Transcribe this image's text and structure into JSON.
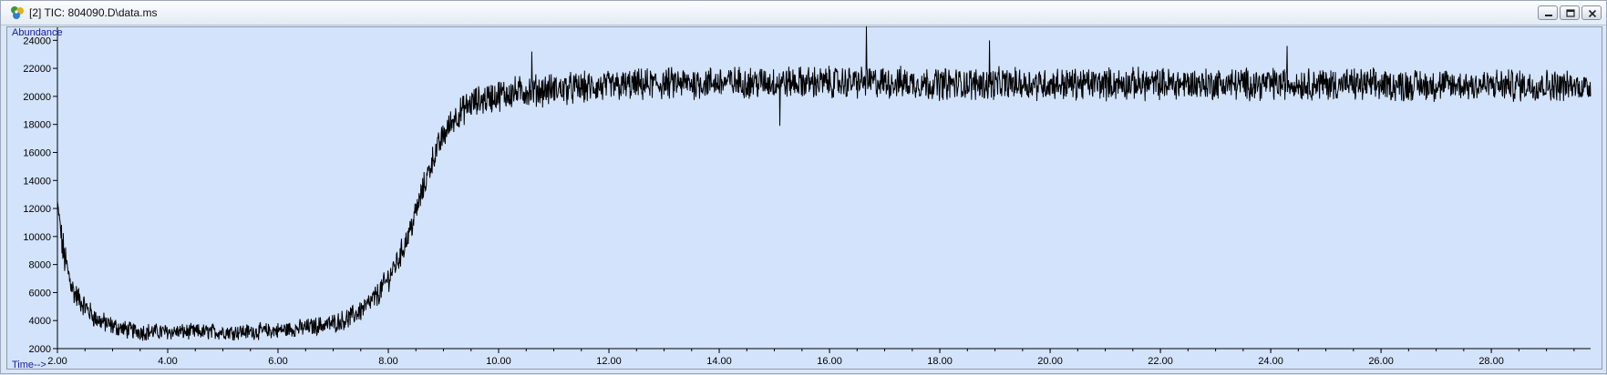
{
  "window": {
    "title": "[2] TIC: 804090.D\\data.ms",
    "app_icon": "chemstation-icon",
    "controls": [
      "minimize-icon",
      "restore-icon",
      "close-icon"
    ]
  },
  "colors": {
    "plot_background": "#d3e3fb",
    "trace": "#000000",
    "axis_label": "#1a1aa0"
  },
  "chart_data": {
    "type": "line",
    "title": "",
    "xlabel": "Time-->",
    "ylabel": "Abundance",
    "xlim": [
      2.0,
      29.8
    ],
    "ylim": [
      2000,
      24800
    ],
    "grid": false,
    "x_ticks": [
      2,
      4,
      6,
      8,
      10,
      12,
      14,
      16,
      18,
      20,
      22,
      24,
      26,
      28
    ],
    "x_tick_labels": [
      "2.00",
      "4.00",
      "6.00",
      "8.00",
      "10.00",
      "12.00",
      "14.00",
      "16.00",
      "18.00",
      "20.00",
      "22.00",
      "24.00",
      "26.00",
      "28.00"
    ],
    "y_ticks": [
      2000,
      4000,
      6000,
      8000,
      10000,
      12000,
      14000,
      16000,
      18000,
      20000,
      22000,
      24000
    ],
    "y_tick_labels": [
      "2000",
      "4000",
      "6000",
      "8000",
      "10000",
      "12000",
      "14000",
      "16000",
      "18000",
      "20000",
      "22000",
      "24000"
    ],
    "series": [
      {
        "x": [
          2.0,
          2.1,
          2.2,
          2.3,
          2.5,
          2.7,
          3.0,
          3.3,
          3.6,
          4.0,
          4.5,
          5.0,
          5.5,
          6.0,
          6.5,
          7.0,
          7.3,
          7.6,
          7.8,
          8.0,
          8.2,
          8.4,
          8.6,
          8.8,
          9.0,
          9.2,
          9.5,
          10.0,
          10.5,
          11.0,
          11.5,
          12.0,
          12.5,
          13.0,
          14.0,
          15.0,
          16.0,
          17.0,
          18.0,
          19.0,
          20.0,
          21.0,
          22.0,
          23.0,
          24.0,
          25.0,
          26.0,
          27.0,
          28.0,
          29.0,
          29.8
        ],
        "y": [
          12500,
          9000,
          7300,
          6000,
          5000,
          4100,
          3600,
          3300,
          3200,
          3200,
          3200,
          3200,
          3200,
          3300,
          3500,
          3800,
          4200,
          5000,
          5800,
          7000,
          8500,
          10500,
          13000,
          15500,
          17200,
          18500,
          19500,
          20100,
          20400,
          20500,
          20600,
          20700,
          20800,
          20900,
          21000,
          21000,
          21000,
          21000,
          20900,
          20900,
          20900,
          20900,
          20900,
          20900,
          20900,
          20900,
          20800,
          20800,
          20800,
          20800,
          20700
        ],
        "noise": [
          0,
          1300,
          900,
          800,
          700,
          650,
          600,
          550,
          550,
          500,
          500,
          500,
          500,
          500,
          550,
          600,
          650,
          700,
          750,
          800,
          800,
          850,
          850,
          850,
          900,
          900,
          950,
          1000,
          1000,
          1000,
          1000,
          1000,
          1000,
          1000,
          1000,
          1000,
          1000,
          1000,
          1000,
          1000,
          1000,
          1000,
          1000,
          1000,
          1000,
          1000,
          1000,
          1000,
          1000,
          1000,
          800
        ]
      }
    ],
    "spikes": [
      {
        "x": 16.67,
        "y": 25000
      },
      {
        "x": 18.9,
        "y": 24000
      },
      {
        "x": 24.3,
        "y": 23600
      },
      {
        "x": 10.6,
        "y": 23200
      },
      {
        "x": 15.1,
        "y": 17900
      }
    ]
  }
}
